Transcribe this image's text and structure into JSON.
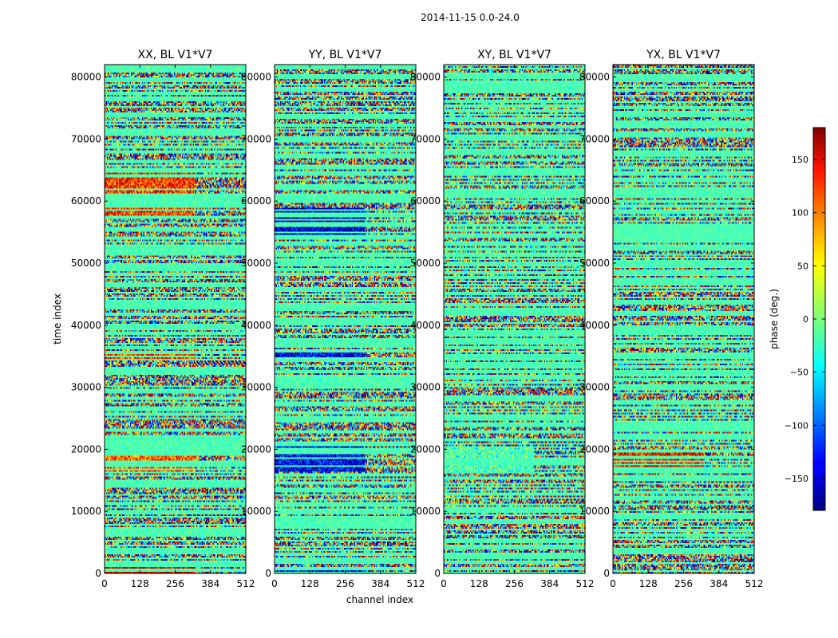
{
  "figure_title": "2014-11-15 0.0-24.0",
  "chart_data": {
    "type": "heatmap",
    "ylabel": "time index",
    "xlabel": "channel index",
    "xlim": [
      0,
      512
    ],
    "ylim": [
      0,
      82000
    ],
    "x_ticks": [
      0,
      128,
      256,
      384,
      512
    ],
    "y_ticks": [
      0,
      10000,
      20000,
      30000,
      40000,
      50000,
      60000,
      70000,
      80000
    ],
    "panels": [
      {
        "title": "XX, BL V1*V7"
      },
      {
        "title": "YY, BL V1*V7"
      },
      {
        "title": "XY, BL V1*V7"
      },
      {
        "title": "YX, BL V1*V7"
      }
    ],
    "colorbar": {
      "label": "phase (deg.)",
      "range": [
        -180,
        180
      ],
      "ticks": [
        150,
        100,
        50,
        0,
        -50,
        -100,
        -150
      ],
      "tick_labels": [
        "150",
        "100",
        "50",
        "0",
        "−50",
        "−100",
        "−150"
      ],
      "colormap": "jet"
    }
  }
}
